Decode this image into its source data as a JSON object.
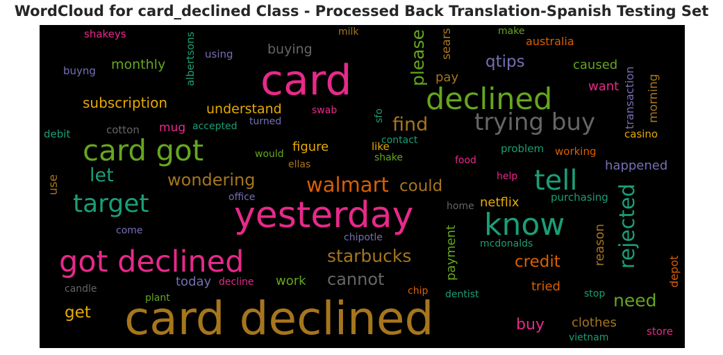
{
  "chart_data": {
    "type": "wordcloud",
    "title": "WordCloud for card_declined Class - Processed Back Translation-Spanish Testing Set",
    "background": "#000000",
    "palette": {
      "pink": "#e7298a",
      "green": "#66a61e",
      "teal": "#1b9e77",
      "orange": "#d95f02",
      "gold": "#a6761d",
      "purple": "#7570b3",
      "gray": "#666666",
      "yellow": "#e6ab02"
    },
    "words": [
      {
        "text": "card declined",
        "color": "#a6761d",
        "orientation": "horizontal"
      },
      {
        "text": "yesterday",
        "color": "#e7298a",
        "orientation": "horizontal"
      },
      {
        "text": "card",
        "color": "#e7298a",
        "orientation": "horizontal"
      },
      {
        "text": "got declined",
        "color": "#e7298a",
        "orientation": "horizontal"
      },
      {
        "text": "card got",
        "color": "#66a61e",
        "orientation": "horizontal"
      },
      {
        "text": "declined",
        "color": "#66a61e",
        "orientation": "horizontal"
      },
      {
        "text": "know",
        "color": "#1b9e77",
        "orientation": "horizontal"
      },
      {
        "text": "target",
        "color": "#1b9e77",
        "orientation": "horizontal"
      },
      {
        "text": "trying buy",
        "color": "#666666",
        "orientation": "horizontal"
      },
      {
        "text": "tell",
        "color": "#1b9e77",
        "orientation": "horizontal"
      },
      {
        "text": "walmart",
        "color": "#d95f02",
        "orientation": "horizontal"
      },
      {
        "text": "please",
        "color": "#66a61e",
        "orientation": "vertical"
      },
      {
        "text": "rejected",
        "color": "#1b9e77",
        "orientation": "vertical"
      },
      {
        "text": "find",
        "color": "#a6761d",
        "orientation": "horizontal"
      },
      {
        "text": "let",
        "color": "#1b9e77",
        "orientation": "horizontal"
      },
      {
        "text": "wondering",
        "color": "#a6761d",
        "orientation": "horizontal"
      },
      {
        "text": "starbucks",
        "color": "#a6761d",
        "orientation": "horizontal"
      },
      {
        "text": "cannot",
        "color": "#666666",
        "orientation": "horizontal"
      },
      {
        "text": "could",
        "color": "#a6761d",
        "orientation": "horizontal"
      },
      {
        "text": "need",
        "color": "#66a61e",
        "orientation": "horizontal"
      },
      {
        "text": "credit",
        "color": "#d95f02",
        "orientation": "horizontal"
      },
      {
        "text": "qtips",
        "color": "#7570b3",
        "orientation": "horizontal"
      },
      {
        "text": "subscription",
        "color": "#e6ab02",
        "orientation": "horizontal"
      },
      {
        "text": "understand",
        "color": "#e6ab02",
        "orientation": "horizontal"
      },
      {
        "text": "buying",
        "color": "#666666",
        "orientation": "horizontal"
      },
      {
        "text": "monthly",
        "color": "#66a61e",
        "orientation": "horizontal"
      },
      {
        "text": "get",
        "color": "#e6ab02",
        "orientation": "horizontal"
      },
      {
        "text": "buy",
        "color": "#e7298a",
        "orientation": "horizontal"
      },
      {
        "text": "clothes",
        "color": "#a6761d",
        "orientation": "horizontal"
      },
      {
        "text": "netflix",
        "color": "#e6ab02",
        "orientation": "horizontal"
      },
      {
        "text": "figure",
        "color": "#e6ab02",
        "orientation": "horizontal"
      },
      {
        "text": "work",
        "color": "#66a61e",
        "orientation": "horizontal"
      },
      {
        "text": "today",
        "color": "#7570b3",
        "orientation": "horizontal"
      },
      {
        "text": "tried",
        "color": "#d95f02",
        "orientation": "horizontal"
      },
      {
        "text": "happened",
        "color": "#7570b3",
        "orientation": "horizontal"
      },
      {
        "text": "caused",
        "color": "#66a61e",
        "orientation": "horizontal"
      },
      {
        "text": "want",
        "color": "#e7298a",
        "orientation": "horizontal"
      },
      {
        "text": "pay",
        "color": "#a6761d",
        "orientation": "horizontal"
      },
      {
        "text": "mug",
        "color": "#e7298a",
        "orientation": "horizontal"
      },
      {
        "text": "reason",
        "color": "#a6761d",
        "orientation": "vertical"
      },
      {
        "text": "payment",
        "color": "#66a61e",
        "orientation": "vertical"
      },
      {
        "text": "sears",
        "color": "#a6761d",
        "orientation": "vertical"
      },
      {
        "text": "morning",
        "color": "#a6761d",
        "orientation": "vertical"
      },
      {
        "text": "transaction",
        "color": "#7570b3",
        "orientation": "vertical"
      },
      {
        "text": "albertsons",
        "color": "#1b9e77",
        "orientation": "vertical"
      },
      {
        "text": "depot",
        "color": "#d95f02",
        "orientation": "vertical"
      },
      {
        "text": "use",
        "color": "#a6761d",
        "orientation": "vertical"
      },
      {
        "text": "sfo",
        "color": "#1b9e77",
        "orientation": "vertical"
      },
      {
        "text": "shakeys",
        "color": "#e7298a",
        "orientation": "horizontal"
      },
      {
        "text": "using",
        "color": "#7570b3",
        "orientation": "horizontal"
      },
      {
        "text": "milk",
        "color": "#a6761d",
        "orientation": "horizontal"
      },
      {
        "text": "make",
        "color": "#66a61e",
        "orientation": "horizontal"
      },
      {
        "text": "australia",
        "color": "#d95f02",
        "orientation": "horizontal"
      },
      {
        "text": "buyng",
        "color": "#7570b3",
        "orientation": "horizontal"
      },
      {
        "text": "swab",
        "color": "#e7298a",
        "orientation": "horizontal"
      },
      {
        "text": "turned",
        "color": "#7570b3",
        "orientation": "horizontal"
      },
      {
        "text": "accepted",
        "color": "#1b9e77",
        "orientation": "horizontal"
      },
      {
        "text": "cotton",
        "color": "#666666",
        "orientation": "horizontal"
      },
      {
        "text": "debit",
        "color": "#1b9e77",
        "orientation": "horizontal"
      },
      {
        "text": "casino",
        "color": "#e6ab02",
        "orientation": "horizontal"
      },
      {
        "text": "contact",
        "color": "#1b9e77",
        "orientation": "horizontal"
      },
      {
        "text": "like",
        "color": "#e6ab02",
        "orientation": "horizontal"
      },
      {
        "text": "would",
        "color": "#66a61e",
        "orientation": "horizontal"
      },
      {
        "text": "shake",
        "color": "#66a61e",
        "orientation": "horizontal"
      },
      {
        "text": "ellas",
        "color": "#a6761d",
        "orientation": "horizontal"
      },
      {
        "text": "problem",
        "color": "#1b9e77",
        "orientation": "horizontal"
      },
      {
        "text": "working",
        "color": "#d95f02",
        "orientation": "horizontal"
      },
      {
        "text": "food",
        "color": "#e7298a",
        "orientation": "horizontal"
      },
      {
        "text": "help",
        "color": "#e7298a",
        "orientation": "horizontal"
      },
      {
        "text": "office",
        "color": "#7570b3",
        "orientation": "horizontal"
      },
      {
        "text": "purchasing",
        "color": "#1b9e77",
        "orientation": "horizontal"
      },
      {
        "text": "home",
        "color": "#666666",
        "orientation": "horizontal"
      },
      {
        "text": "come",
        "color": "#7570b3",
        "orientation": "horizontal"
      },
      {
        "text": "chipotle",
        "color": "#7570b3",
        "orientation": "horizontal"
      },
      {
        "text": "mcdonalds",
        "color": "#1b9e77",
        "orientation": "horizontal"
      },
      {
        "text": "candle",
        "color": "#666666",
        "orientation": "horizontal"
      },
      {
        "text": "decline",
        "color": "#e7298a",
        "orientation": "horizontal"
      },
      {
        "text": "chip",
        "color": "#d95f02",
        "orientation": "horizontal"
      },
      {
        "text": "dentist",
        "color": "#1b9e77",
        "orientation": "horizontal"
      },
      {
        "text": "stop",
        "color": "#1b9e77",
        "orientation": "horizontal"
      },
      {
        "text": "plant",
        "color": "#66a61e",
        "orientation": "horizontal"
      },
      {
        "text": "store",
        "color": "#e7298a",
        "orientation": "horizontal"
      },
      {
        "text": "vietnam",
        "color": "#1b9e77",
        "orientation": "horizontal"
      }
    ]
  }
}
